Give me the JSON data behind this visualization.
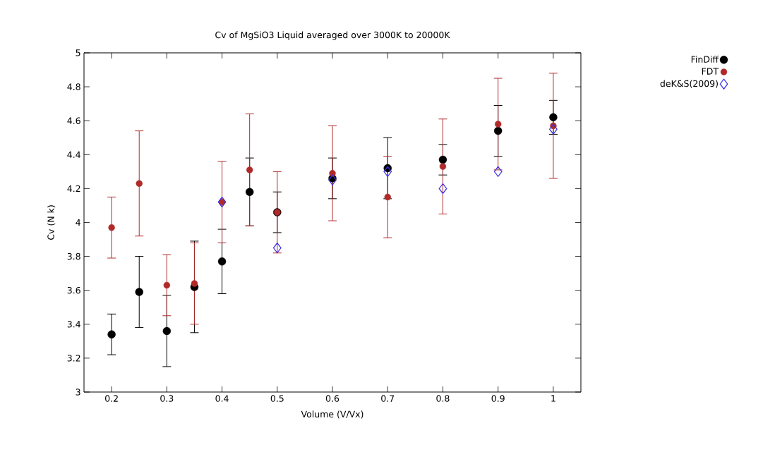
{
  "chart_data": {
    "type": "scatter",
    "title": "Cv of MgSiO3 Liquid averaged over 3000K to 20000K",
    "xlabel": "Volume (V/Vx)",
    "ylabel": "Cv (N k)",
    "xlim": [
      0.15,
      1.05
    ],
    "xticks": [
      0.2,
      0.3,
      0.4,
      0.5,
      0.6,
      0.7,
      0.8,
      0.9,
      1
    ],
    "ylim": [
      3,
      5
    ],
    "yticks": [
      3,
      3.2,
      3.4,
      3.6,
      3.8,
      4,
      4.2,
      4.4,
      4.6,
      4.8,
      5
    ],
    "legend": "top right",
    "grid": false,
    "series": [
      {
        "name": "FinDiff",
        "color": "#000000",
        "marker": "circle",
        "x": [
          0.2,
          0.25,
          0.3,
          0.35,
          0.4,
          0.45,
          0.5,
          0.6,
          0.7,
          0.8,
          0.9,
          1
        ],
        "values": [
          3.34,
          3.59,
          3.36,
          3.62,
          3.77,
          4.18,
          4.06,
          4.26,
          4.32,
          4.37,
          4.54,
          4.62
        ],
        "errors": [
          0.12,
          0.21,
          0.21,
          0.27,
          0.19,
          0.2,
          0.12,
          0.12,
          0.18,
          0.09,
          0.15,
          0.1
        ]
      },
      {
        "name": "FDT",
        "color": "#b02a2a",
        "marker": "circle",
        "x": [
          0.2,
          0.25,
          0.3,
          0.35,
          0.4,
          0.45,
          0.5,
          0.6,
          0.7,
          0.8,
          0.9,
          1
        ],
        "values": [
          3.97,
          4.23,
          3.63,
          3.64,
          4.12,
          4.31,
          4.06,
          4.29,
          4.15,
          4.33,
          4.58,
          4.57
        ],
        "errors": [
          0.18,
          0.31,
          0.18,
          0.24,
          0.24,
          0.33,
          0.24,
          0.28,
          0.24,
          0.28,
          0.27,
          0.31
        ]
      },
      {
        "name": "deK&S(2009)",
        "color": "#3a2ee8",
        "marker": "diamond",
        "x": [
          0.4,
          0.5,
          0.6,
          0.7,
          0.8,
          0.9,
          1
        ],
        "values": [
          4.12,
          3.85,
          4.25,
          4.3,
          4.2,
          4.3,
          4.55
        ]
      }
    ]
  }
}
